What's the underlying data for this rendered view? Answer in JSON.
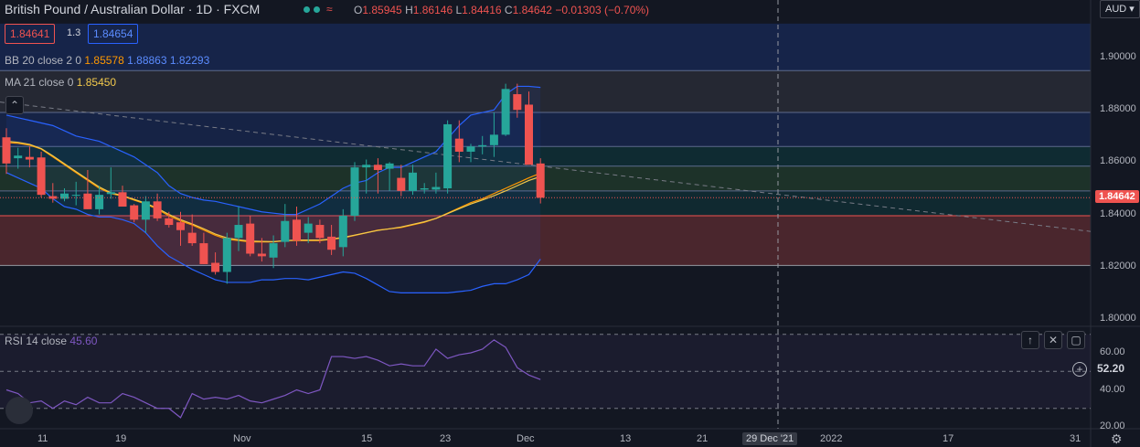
{
  "header": {
    "title": "British Pound / Australian Dollar · 1D · FXCM",
    "ohlc": {
      "o_label": "O",
      "o": "1.85945",
      "h_label": "H",
      "h": "1.86146",
      "l_label": "L",
      "l": "1.84416",
      "c_label": "C",
      "c": "1.84642",
      "change": "−0.01303 (−0.70%)"
    },
    "sell_price": "1.84641",
    "spread": "1.3",
    "buy_price": "1.84654",
    "currency": "AUD"
  },
  "indicators": {
    "bb_label": "BB 20 close 2 0",
    "bb_basis": "1.85578",
    "bb_upper": "1.88863",
    "bb_lower": "1.82293",
    "ma_label": "MA 21 close 0",
    "ma_value": "1.85450",
    "rsi_label": "RSI 14 close",
    "rsi_value": "45.60",
    "rsi_badge": "52.20"
  },
  "axes": {
    "price_ticks": [
      "1.90000",
      "1.88000",
      "1.86000",
      "1.84000",
      "1.82000",
      "1.80000"
    ],
    "rsi_ticks": [
      "60.00",
      "40.00",
      "20.00"
    ],
    "last_price": "1.84642",
    "time_ticks": [
      "11",
      "19",
      "Nov",
      "15",
      "23",
      "Dec",
      "13",
      "21",
      "2022",
      "17",
      "31"
    ],
    "crosshair_date": "29 Dec '21"
  },
  "colors": {
    "up": "#26a69a",
    "down": "#ef5350",
    "bb": "#2962ff",
    "ma": "#f2c94c",
    "rsi": "#7e57c2"
  },
  "chart_data": {
    "type": "candlestick",
    "title": "British Pound / Australian Dollar",
    "ylim": [
      1.795,
      1.913
    ],
    "candles": [
      {
        "o": 1.8695,
        "h": 1.873,
        "l": 1.8555,
        "c": 1.8595
      },
      {
        "o": 1.8615,
        "h": 1.8655,
        "l": 1.8575,
        "c": 1.8625
      },
      {
        "o": 1.862,
        "h": 1.866,
        "l": 1.858,
        "c": 1.861
      },
      {
        "o": 1.8618,
        "h": 1.864,
        "l": 1.8465,
        "c": 1.8475
      },
      {
        "o": 1.847,
        "h": 1.852,
        "l": 1.8445,
        "c": 1.846
      },
      {
        "o": 1.846,
        "h": 1.85,
        "l": 1.845,
        "c": 1.848
      },
      {
        "o": 1.8475,
        "h": 1.8525,
        "l": 1.8435,
        "c": 1.8475
      },
      {
        "o": 1.848,
        "h": 1.857,
        "l": 1.842,
        "c": 1.842
      },
      {
        "o": 1.842,
        "h": 1.851,
        "l": 1.84,
        "c": 1.8475
      },
      {
        "o": 1.8478,
        "h": 1.858,
        "l": 1.846,
        "c": 1.8485
      },
      {
        "o": 1.8485,
        "h": 1.851,
        "l": 1.843,
        "c": 1.843
      },
      {
        "o": 1.8435,
        "h": 1.844,
        "l": 1.837,
        "c": 1.838
      },
      {
        "o": 1.838,
        "h": 1.847,
        "l": 1.833,
        "c": 1.845
      },
      {
        "o": 1.845,
        "h": 1.848,
        "l": 1.8375,
        "c": 1.8385
      },
      {
        "o": 1.8385,
        "h": 1.841,
        "l": 1.835,
        "c": 1.836
      },
      {
        "o": 1.837,
        "h": 1.841,
        "l": 1.828,
        "c": 1.834
      },
      {
        "o": 1.833,
        "h": 1.84,
        "l": 1.828,
        "c": 1.829
      },
      {
        "o": 1.829,
        "h": 1.833,
        "l": 1.821,
        "c": 1.821
      },
      {
        "o": 1.8215,
        "h": 1.8255,
        "l": 1.817,
        "c": 1.818
      },
      {
        "o": 1.818,
        "h": 1.833,
        "l": 1.8135,
        "c": 1.831
      },
      {
        "o": 1.831,
        "h": 1.843,
        "l": 1.826,
        "c": 1.836
      },
      {
        "o": 1.8365,
        "h": 1.8395,
        "l": 1.824,
        "c": 1.825
      },
      {
        "o": 1.825,
        "h": 1.831,
        "l": 1.822,
        "c": 1.824
      },
      {
        "o": 1.8235,
        "h": 1.832,
        "l": 1.8195,
        "c": 1.829
      },
      {
        "o": 1.8295,
        "h": 1.844,
        "l": 1.8275,
        "c": 1.8375
      },
      {
        "o": 1.838,
        "h": 1.843,
        "l": 1.828,
        "c": 1.83
      },
      {
        "o": 1.833,
        "h": 1.839,
        "l": 1.829,
        "c": 1.8365
      },
      {
        "o": 1.836,
        "h": 1.838,
        "l": 1.829,
        "c": 1.831
      },
      {
        "o": 1.8315,
        "h": 1.836,
        "l": 1.8245,
        "c": 1.8265
      },
      {
        "o": 1.8275,
        "h": 1.842,
        "l": 1.824,
        "c": 1.8395
      },
      {
        "o": 1.8395,
        "h": 1.86,
        "l": 1.8375,
        "c": 1.858
      },
      {
        "o": 1.858,
        "h": 1.861,
        "l": 1.848,
        "c": 1.859
      },
      {
        "o": 1.859,
        "h": 1.8615,
        "l": 1.848,
        "c": 1.857
      },
      {
        "o": 1.8575,
        "h": 1.86,
        "l": 1.849,
        "c": 1.8595
      },
      {
        "o": 1.854,
        "h": 1.859,
        "l": 1.847,
        "c": 1.849
      },
      {
        "o": 1.849,
        "h": 1.859,
        "l": 1.8475,
        "c": 1.856
      },
      {
        "o": 1.8495,
        "h": 1.852,
        "l": 1.848,
        "c": 1.85
      },
      {
        "o": 1.8495,
        "h": 1.856,
        "l": 1.848,
        "c": 1.8505
      },
      {
        "o": 1.85,
        "h": 1.876,
        "l": 1.848,
        "c": 1.8745
      },
      {
        "o": 1.869,
        "h": 1.876,
        "l": 1.86,
        "c": 1.864
      },
      {
        "o": 1.864,
        "h": 1.867,
        "l": 1.86,
        "c": 1.866
      },
      {
        "o": 1.866,
        "h": 1.87,
        "l": 1.863,
        "c": 1.8665
      },
      {
        "o": 1.8665,
        "h": 1.879,
        "l": 1.862,
        "c": 1.8705
      },
      {
        "o": 1.8705,
        "h": 1.89,
        "l": 1.87,
        "c": 1.888
      },
      {
        "o": 1.886,
        "h": 1.89,
        "l": 1.877,
        "c": 1.88
      },
      {
        "o": 1.882,
        "h": 1.887,
        "l": 1.859,
        "c": 1.859
      },
      {
        "o": 1.8595,
        "h": 1.8615,
        "l": 1.8442,
        "c": 1.8464
      }
    ],
    "bb_upper": [
      1.878,
      1.877,
      1.876,
      1.875,
      1.874,
      1.872,
      1.87,
      1.869,
      1.868,
      1.866,
      1.864,
      1.862,
      1.859,
      1.856,
      1.851,
      1.848,
      1.8465,
      1.8455,
      1.845,
      1.844,
      1.843,
      1.842,
      1.841,
      1.8405,
      1.84,
      1.84,
      1.842,
      1.844,
      1.847,
      1.85,
      1.852,
      1.853,
      1.856,
      1.858,
      1.858,
      1.86,
      1.862,
      1.864,
      1.869,
      1.874,
      1.878,
      1.879,
      1.88,
      1.886,
      1.889,
      1.889,
      1.8886
    ],
    "bb_lower": [
      1.856,
      1.854,
      1.852,
      1.85,
      1.846,
      1.843,
      1.842,
      1.84,
      1.839,
      1.839,
      1.838,
      1.8365,
      1.833,
      1.828,
      1.824,
      1.8215,
      1.819,
      1.817,
      1.815,
      1.814,
      1.814,
      1.814,
      1.815,
      1.815,
      1.8155,
      1.8155,
      1.815,
      1.816,
      1.817,
      1.818,
      1.8175,
      1.8155,
      1.813,
      1.8105,
      1.81,
      1.81,
      1.81,
      1.81,
      1.81,
      1.8105,
      1.811,
      1.8125,
      1.8135,
      1.8135,
      1.815,
      1.817,
      1.8229
    ],
    "bb_basis": [
      1.8675,
      1.8672,
      1.8665,
      1.865,
      1.862,
      1.859,
      1.856,
      1.853,
      1.85,
      1.848,
      1.847,
      1.8455,
      1.844,
      1.842,
      1.8395,
      1.8375,
      1.836,
      1.834,
      1.832,
      1.8305,
      1.83,
      1.8295,
      1.8295,
      1.8295,
      1.83,
      1.83,
      1.83,
      1.83,
      1.8305,
      1.831,
      1.832,
      1.833,
      1.834,
      1.8345,
      1.835,
      1.836,
      1.837,
      1.8385,
      1.8405,
      1.8425,
      1.8445,
      1.846,
      1.848,
      1.85,
      1.852,
      1.854,
      1.8558
    ],
    "ma": [
      1.868,
      1.8676,
      1.8668,
      1.8652,
      1.8624,
      1.8594,
      1.8564,
      1.8534,
      1.8505,
      1.8483,
      1.8472,
      1.8458,
      1.8443,
      1.8424,
      1.84,
      1.838,
      1.8364,
      1.8345,
      1.8325,
      1.831,
      1.8303,
      1.8298,
      1.8297,
      1.8296,
      1.83,
      1.8302,
      1.8302,
      1.8302,
      1.8306,
      1.8312,
      1.8321,
      1.833,
      1.8339,
      1.8345,
      1.8352,
      1.8362,
      1.8372,
      1.8385,
      1.8403,
      1.8422,
      1.844,
      1.8455,
      1.8472,
      1.849,
      1.851,
      1.853,
      1.8545
    ],
    "rsi": {
      "ylim": [
        15,
        75
      ],
      "levels": [
        70,
        50,
        30
      ],
      "values": [
        40,
        38,
        33,
        34,
        30,
        34,
        32,
        36,
        33,
        33,
        38,
        36,
        33,
        30,
        30,
        25,
        38,
        35,
        36,
        35,
        37,
        34,
        33,
        35,
        37,
        40,
        38,
        40,
        58,
        58,
        57,
        58,
        56,
        53,
        54,
        53,
        53,
        62,
        57,
        59,
        60,
        62,
        67,
        63,
        52,
        48,
        45.6
      ]
    },
    "horizontal_levels": [
      1.895,
      1.879,
      1.866,
      1.8585,
      1.849,
      1.8395,
      1.8205
    ],
    "trendline": {
      "from": [
        0,
        1.883
      ],
      "to": [
        "2022-01-31",
        1.834
      ]
    }
  }
}
